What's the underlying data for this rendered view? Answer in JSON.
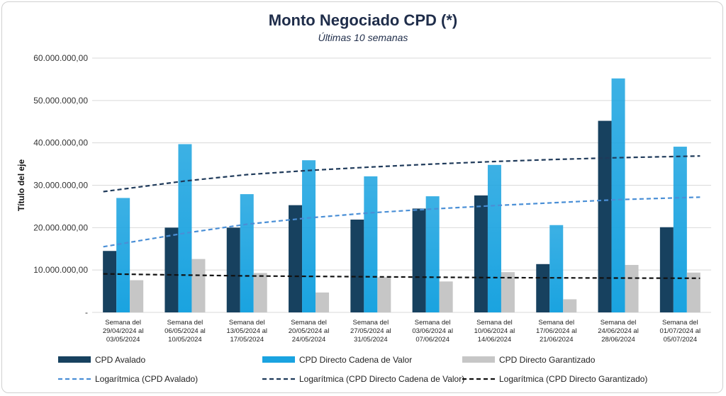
{
  "chart_data": {
    "type": "bar",
    "title": "Monto Negociado CPD (*)",
    "subtitle": "Últimas 10 semanas",
    "ylabel": "Título del eje",
    "ylim": [
      0,
      60000000
    ],
    "yticks": [
      {
        "value": 0,
        "label": "-"
      },
      {
        "value": 10000000,
        "label": "10.000.000,00"
      },
      {
        "value": 20000000,
        "label": "20.000.000,00"
      },
      {
        "value": 30000000,
        "label": "30.000.000,00"
      },
      {
        "value": 40000000,
        "label": "40.000.000,00"
      },
      {
        "value": 50000000,
        "label": "50.000.000,00"
      },
      {
        "value": 60000000,
        "label": "60.000.000,00"
      }
    ],
    "grid": true,
    "legend_position": "bottom",
    "categories": [
      [
        "Semana del",
        "29/04/2024 al",
        "03/05/2024"
      ],
      [
        "Semana del",
        "06/05/2024 al",
        "10/05/2024"
      ],
      [
        "Semana del",
        "13/05/2024 al",
        "17/05/2024"
      ],
      [
        "Semana del",
        "20/05/2024 al",
        "24/05/2024"
      ],
      [
        "Semana del",
        "27/05/2024 al",
        "31/05/2024"
      ],
      [
        "Semana del",
        "03/06/2024 al",
        "07/06/2024"
      ],
      [
        "Semana del",
        "10/06/2024 al",
        "14/06/2024"
      ],
      [
        "Semana del",
        "17/06/2024 al",
        "21/06/2024"
      ],
      [
        "Semana del",
        "24/06/2024 al",
        "28/06/2024"
      ],
      [
        "Semana del",
        "01/07/2024 al",
        "05/07/2024"
      ]
    ],
    "series": [
      {
        "name": "CPD Avalado",
        "color": "#17415f",
        "values": [
          14500000,
          20000000,
          20000000,
          25300000,
          21900000,
          24500000,
          27600000,
          11400000,
          45200000,
          20100000
        ]
      },
      {
        "name": "CPD Directo Cadena de Valor",
        "color": "#1aa3e0",
        "values": [
          27000000,
          39700000,
          27900000,
          35900000,
          32100000,
          27400000,
          34800000,
          20600000,
          55200000,
          39100000
        ]
      },
      {
        "name": "CPD Directo Garantizado",
        "color": "#c6c6c6",
        "values": [
          7600000,
          12600000,
          9300000,
          4700000,
          8300000,
          7300000,
          9500000,
          3100000,
          11200000,
          9400000
        ]
      }
    ],
    "trendlines": [
      {
        "name": "Logarítmica (CPD Avalado)",
        "color": "#4a8fd6",
        "type": "logarithmic",
        "values": [
          15500000,
          18700000,
          20800000,
          22300000,
          23500000,
          24400000,
          25200000,
          25900000,
          26600000,
          27200000
        ]
      },
      {
        "name": "Logarítmica (CPD Directo Cadena de Valor)",
        "color": "#1f3a5a",
        "type": "logarithmic",
        "values": [
          28500000,
          31000000,
          32500000,
          33500000,
          34300000,
          35000000,
          35600000,
          36100000,
          36500000,
          36900000
        ]
      },
      {
        "name": "Logarítmica (CPD Directo Garantizado)",
        "color": "#111111",
        "type": "logarithmic",
        "values": [
          9100000,
          8800000,
          8600000,
          8500000,
          8400000,
          8300000,
          8200000,
          8150000,
          8100000,
          8050000
        ]
      }
    ]
  }
}
